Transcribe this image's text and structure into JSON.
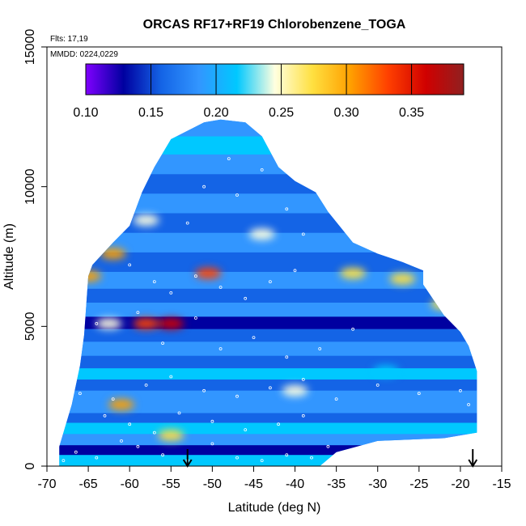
{
  "chart_data": {
    "type": "heatmap",
    "title": "ORCAS RF17+RF19 Chlorobenzene_TOGA",
    "subtitle_lines": [
      "Flts: 17,19",
      "MMDD: 0224,0229"
    ],
    "xlabel": "Latitude (deg N)",
    "ylabel": "Altitude (m)",
    "xlim": [
      -70,
      -15
    ],
    "ylim": [
      0,
      15000
    ],
    "x_ticks": [
      -70,
      -65,
      -60,
      -55,
      -50,
      -45,
      -40,
      -35,
      -30,
      -25,
      -20,
      -15
    ],
    "y_ticks": [
      0,
      5000,
      10000,
      15000
    ],
    "colorbar": {
      "range": [
        0.1,
        0.39
      ],
      "tick_values": [
        0.1,
        0.15,
        0.2,
        0.25,
        0.3,
        0.35
      ],
      "tick_labels": [
        "0.10",
        "0.15",
        "0.20",
        "0.25",
        "0.30",
        "0.35"
      ],
      "colors": [
        "#8000ff",
        "#0000a0",
        "#1464e6",
        "#3296ff",
        "#00c8ff",
        "#ffffe0",
        "#ffe040",
        "#ffa000",
        "#ff4000",
        "#d00000",
        "#902020"
      ]
    },
    "arrows_latitude": [
      -53,
      -18.5
    ],
    "field_outline": [
      [
        -68.5,
        0
      ],
      [
        -68.5,
        700
      ],
      [
        -67,
        2200
      ],
      [
        -66,
        3600
      ],
      [
        -65.5,
        4700
      ],
      [
        -65,
        6800
      ],
      [
        -64.5,
        7200
      ],
      [
        -62,
        8000
      ],
      [
        -60,
        8600
      ],
      [
        -58.5,
        9800
      ],
      [
        -57,
        10700
      ],
      [
        -55,
        11700
      ],
      [
        -53,
        12000
      ],
      [
        -51,
        12300
      ],
      [
        -49,
        12400
      ],
      [
        -46,
        12300
      ],
      [
        -44,
        11800
      ],
      [
        -42,
        10700
      ],
      [
        -40,
        10200
      ],
      [
        -37.5,
        9800
      ],
      [
        -36,
        9100
      ],
      [
        -33,
        8000
      ],
      [
        -30,
        7600
      ],
      [
        -27,
        7300
      ],
      [
        -24.5,
        7000
      ],
      [
        -24.5,
        6500
      ],
      [
        -22,
        5400
      ],
      [
        -20,
        4800
      ],
      [
        -19,
        4300
      ],
      [
        -18,
        3400
      ],
      [
        -18,
        1200
      ],
      [
        -22,
        1000
      ],
      [
        -30,
        900
      ],
      [
        -35,
        500
      ],
      [
        -37,
        0
      ]
    ],
    "bands": [
      {
        "alt": 200,
        "value": 0.22
      },
      {
        "alt": 600,
        "value": 0.14
      },
      {
        "alt": 900,
        "value": 0.19
      },
      {
        "alt": 1400,
        "value": 0.21
      },
      {
        "alt": 1700,
        "value": 0.15
      },
      {
        "alt": 2100,
        "value": 0.18
      },
      {
        "alt": 2500,
        "value": 0.2
      },
      {
        "alt": 2900,
        "value": 0.16
      },
      {
        "alt": 3300,
        "value": 0.22
      },
      {
        "alt": 3700,
        "value": 0.17
      },
      {
        "alt": 4200,
        "value": 0.19
      },
      {
        "alt": 4700,
        "value": 0.15
      },
      {
        "alt": 5100,
        "value": 0.14
      },
      {
        "alt": 5600,
        "value": 0.19
      },
      {
        "alt": 6100,
        "value": 0.16
      },
      {
        "alt": 6600,
        "value": 0.2
      },
      {
        "alt": 7300,
        "value": 0.17
      },
      {
        "alt": 8000,
        "value": 0.2
      },
      {
        "alt": 8700,
        "value": 0.15
      },
      {
        "alt": 9400,
        "value": 0.19
      },
      {
        "alt": 10100,
        "value": 0.17
      },
      {
        "alt": 10800,
        "value": 0.2
      },
      {
        "alt": 11500,
        "value": 0.21
      },
      {
        "alt": 12100,
        "value": 0.19
      }
    ],
    "hotspots": [
      {
        "lat": -55,
        "alt": 5100,
        "value": 0.36
      },
      {
        "lat": -58,
        "alt": 5100,
        "value": 0.33
      },
      {
        "lat": -50.5,
        "alt": 6900,
        "value": 0.32
      },
      {
        "lat": -62,
        "alt": 7600,
        "value": 0.29
      },
      {
        "lat": -65,
        "alt": 6800,
        "value": 0.29
      },
      {
        "lat": -61,
        "alt": 2200,
        "value": 0.29
      },
      {
        "lat": -55,
        "alt": 1100,
        "value": 0.27
      },
      {
        "lat": -62.5,
        "alt": 5100,
        "value": 0.25
      },
      {
        "lat": -27,
        "alt": 6700,
        "value": 0.27
      },
      {
        "lat": -33,
        "alt": 6900,
        "value": 0.26
      },
      {
        "lat": -22,
        "alt": 5800,
        "value": 0.26
      },
      {
        "lat": -40,
        "alt": 2700,
        "value": 0.24
      },
      {
        "lat": -29,
        "alt": 3400,
        "value": 0.23
      },
      {
        "lat": -44,
        "alt": 8300,
        "value": 0.24
      },
      {
        "lat": -58,
        "alt": 8800,
        "value": 0.24
      }
    ],
    "samples": [
      [
        -68,
        200
      ],
      [
        -66.5,
        500
      ],
      [
        -64,
        300
      ],
      [
        -61,
        900
      ],
      [
        -59,
        700
      ],
      [
        -56,
        400
      ],
      [
        -53,
        200
      ],
      [
        -50,
        800
      ],
      [
        -47,
        300
      ],
      [
        -44,
        200
      ],
      [
        -41,
        400
      ],
      [
        -38,
        300
      ],
      [
        -36,
        700
      ],
      [
        -63,
        1800
      ],
      [
        -60,
        1500
      ],
      [
        -57,
        1200
      ],
      [
        -54,
        1900
      ],
      [
        -50,
        1600
      ],
      [
        -46,
        1300
      ],
      [
        -42,
        1500
      ],
      [
        -39,
        1800
      ],
      [
        -66,
        2600
      ],
      [
        -62,
        2400
      ],
      [
        -58,
        2900
      ],
      [
        -55,
        3200
      ],
      [
        -51,
        2700
      ],
      [
        -47,
        2500
      ],
      [
        -43,
        2800
      ],
      [
        -39,
        3100
      ],
      [
        -35,
        2400
      ],
      [
        -30,
        2900
      ],
      [
        -25,
        2600
      ],
      [
        -20,
        2700
      ],
      [
        -19,
        2200
      ],
      [
        -64,
        5100
      ],
      [
        -59,
        5500
      ],
      [
        -56,
        4400
      ],
      [
        -52,
        5300
      ],
      [
        -49,
        4200
      ],
      [
        -45,
        4600
      ],
      [
        -41,
        3900
      ],
      [
        -37,
        4200
      ],
      [
        -33,
        4900
      ],
      [
        -57,
        6600
      ],
      [
        -55,
        6200
      ],
      [
        -52,
        6800
      ],
      [
        -49,
        6400
      ],
      [
        -46,
        6000
      ],
      [
        -43,
        6600
      ],
      [
        -40,
        7000
      ],
      [
        -60,
        7200
      ],
      [
        -53,
        8700
      ],
      [
        -47,
        9700
      ],
      [
        -41,
        9200
      ],
      [
        -39,
        8300
      ],
      [
        -48,
        11000
      ],
      [
        -44,
        10600
      ],
      [
        -51,
        10000
      ]
    ]
  }
}
